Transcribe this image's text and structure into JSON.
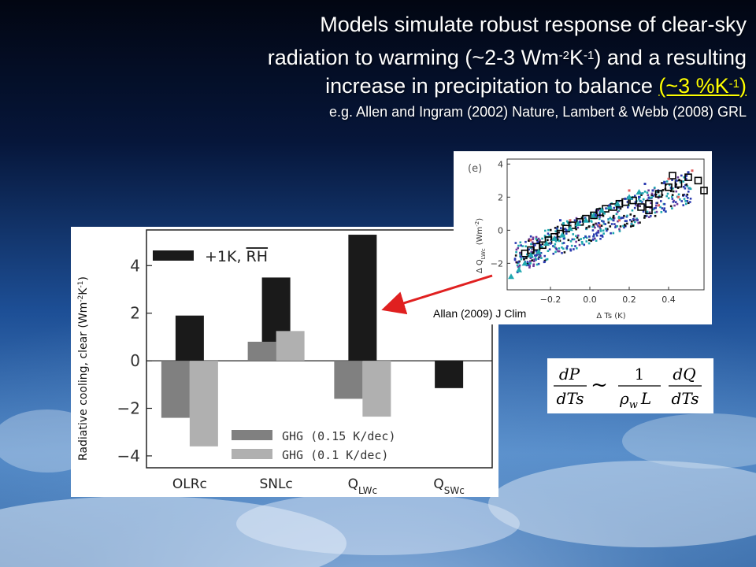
{
  "slide": {
    "title_line1": "Models simulate robust response of clear-sky",
    "title_line2_a": "radiation to warming (~2-3 Wm",
    "title_line2_sup1": "-2",
    "title_line2_b": "K",
    "title_line2_sup2": "-1",
    "title_line2_c": ") and a resulting",
    "title_line3_a": "increase in precipitation to balance ",
    "title_line3_hl": "(~3 %K",
    "title_line3_hl_sup": "-1",
    "title_line3_end": ")",
    "reference": "e.g. Allen and Ingram (2002) Nature, Lambert & Webb (2008) GRL",
    "inset_caption": "Allan (2009) J Clim",
    "highlight_color": "#ffff00",
    "arrow_color": "#e02020"
  },
  "chart_data": [
    {
      "type": "bar",
      "ylabel": "Radiative cooling, clear (Wm-2K-1)",
      "ylabel_parts": {
        "a": "Radiative cooling, clear (Wm",
        "sup1": "-2",
        "b": "K",
        "sup2": "-1",
        "c": ")"
      },
      "ylim": [
        -4.5,
        5.5
      ],
      "yticks": [
        "4",
        "2",
        "0",
        "−2",
        "−4"
      ],
      "yticks_values": [
        4,
        2,
        0,
        -2,
        -4
      ],
      "categories": [
        {
          "main": "OLRc",
          "sub": ""
        },
        {
          "main": "SNLc",
          "sub": ""
        },
        {
          "main": "Q",
          "sub": "LWc"
        },
        {
          "main": "Q",
          "sub": "SWc"
        }
      ],
      "series": [
        {
          "name": "+1K, RH",
          "name_main": "+1K, ",
          "name_over": "RH",
          "color": "#1a1a1a",
          "values": [
            1.9,
            3.5,
            5.3,
            -1.15
          ]
        },
        {
          "name": "GHG (0.15 K/dec)",
          "color": "#808080",
          "values": [
            -2.4,
            0.8,
            -1.6,
            null
          ]
        },
        {
          "name": "GHG (0.1 K/dec)",
          "color": "#b0b0b0",
          "values": [
            -3.6,
            1.25,
            -2.35,
            null
          ]
        }
      ]
    },
    {
      "type": "scatter",
      "panel_label": "(e)",
      "xlabel": "Δ Ts (K)",
      "ylabel_a": "Δ Q",
      "ylabel_sub": "LWc",
      "ylabel_units": "(Wm",
      "ylabel_sup": "-2",
      "ylabel_end": ")",
      "xlim": [
        -0.42,
        0.58
      ],
      "ylim": [
        -3.6,
        4.3
      ],
      "xticks": [
        "−0.2",
        "0.0",
        "0.2",
        "0.4"
      ],
      "xticks_values": [
        -0.2,
        0.0,
        0.2,
        0.4
      ],
      "yticks": [
        "4",
        "2",
        "0",
        "−2"
      ],
      "yticks_values": [
        4,
        2,
        0,
        -2
      ],
      "trend": {
        "slope": 5.4,
        "intercept": 0.15
      },
      "series": [
        {
          "marker": "square-open",
          "color": "#000000",
          "x": [
            -0.33,
            -0.3,
            -0.27,
            -0.24,
            -0.21,
            -0.18,
            -0.15,
            -0.12,
            -0.09,
            -0.05,
            -0.02,
            0.02,
            0.05,
            0.08,
            0.12,
            0.15,
            0.18,
            0.22,
            0.26,
            0.3,
            0.35,
            0.4,
            0.45,
            0.5,
            0.55,
            0.58,
            0.3,
            0.42
          ],
          "y": [
            -1.4,
            -1.2,
            -1.0,
            -0.9,
            -0.6,
            -0.4,
            -0.2,
            0.1,
            0.3,
            0.5,
            0.7,
            0.9,
            1.1,
            1.3,
            1.4,
            1.6,
            1.7,
            1.8,
            1.4,
            1.6,
            2.2,
            2.6,
            2.8,
            3.2,
            3.0,
            2.4,
            1.2,
            3.3
          ]
        },
        {
          "marker": "triangle",
          "color": "#20a8b0",
          "x": [
            -0.4,
            -0.36,
            -0.33,
            -0.3,
            -0.26,
            -0.22,
            -0.18,
            -0.14,
            -0.1,
            -0.06,
            -0.02,
            0.02,
            0.06,
            0.1,
            0.14,
            0.2,
            0.25
          ],
          "y": [
            -2.8,
            -2.4,
            -2.0,
            -1.5,
            -1.3,
            -0.8,
            -0.5,
            -0.3,
            0.1,
            0.4,
            0.6,
            0.9,
            1.2,
            1.4,
            1.6,
            2.0,
            2.3
          ]
        },
        {
          "marker": "dot",
          "color": "#2a3ab0",
          "x": [
            -0.35,
            -0.28,
            -0.2,
            -0.12,
            -0.05,
            0.03,
            0.1,
            0.18,
            0.25,
            0.32,
            0.38,
            0.44,
            0.5,
            0.12,
            -0.15,
            0.28
          ],
          "y": [
            -1.6,
            -0.9,
            -0.8,
            0.0,
            0.5,
            0.9,
            1.5,
            1.9,
            2.0,
            2.4,
            2.9,
            3.0,
            3.5,
            0.6,
            0.6,
            2.8
          ]
        },
        {
          "marker": "dot",
          "color": "#e06060",
          "x": [
            -0.3,
            -0.1,
            0.05,
            0.2,
            0.35,
            0.45,
            0.52,
            0.15,
            0.4
          ],
          "y": [
            -0.6,
            0.6,
            0.3,
            2.4,
            1.5,
            2.0,
            3.6,
            0.6,
            3.1
          ]
        }
      ]
    }
  ],
  "equation": {
    "lhs_num": "dP",
    "lhs_den": "dTs",
    "rel": "~",
    "mid_num": "1",
    "mid_den_rho": "ρ",
    "mid_den_sub": "w",
    "mid_den_L": "L",
    "rhs_num": "dQ",
    "rhs_den": "dTs"
  }
}
